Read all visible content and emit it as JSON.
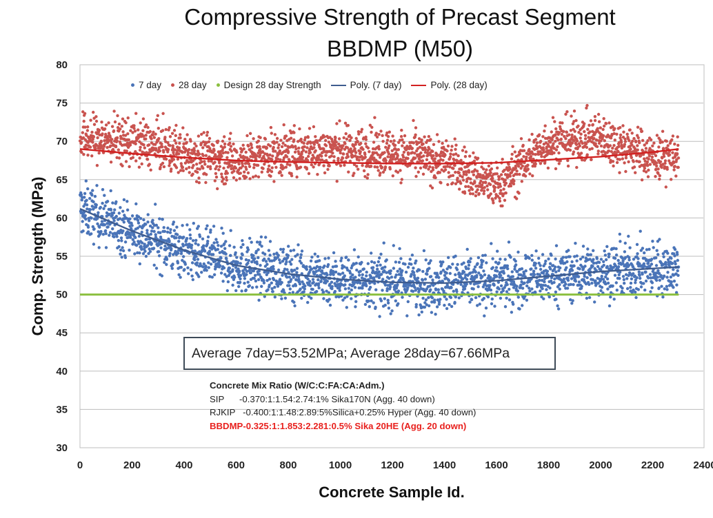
{
  "chart_data": {
    "type": "scatter",
    "title": "Compressive Strength of Precast Segment",
    "subtitle": "BBDMP (M50)",
    "xlabel": "Concrete Sample Id.",
    "ylabel": "Comp. Strength (MPa)",
    "xlim": [
      0,
      2400
    ],
    "ylim": [
      30,
      80
    ],
    "x_ticks": [
      "0",
      "200",
      "400",
      "600",
      "800",
      "1000",
      "1200",
      "1400",
      "1600",
      "1800",
      "2000",
      "2200",
      "2400"
    ],
    "y_ticks": [
      "30",
      "35",
      "40",
      "45",
      "50",
      "55",
      "60",
      "65",
      "70",
      "75",
      "80"
    ],
    "grid": "horizontal",
    "legend": {
      "placement": "top",
      "entries": [
        "7 day",
        "28 day",
        "Design 28 day Strength",
        "Poly. (7 day)",
        "Poly. (28 day)"
      ]
    },
    "n_points_per_series": 2300,
    "series": [
      {
        "name": "7 day",
        "kind": "scatter",
        "color": "#4a74b8",
        "trend_profile": [
          [
            0,
            61.2
          ],
          [
            200,
            58.3
          ],
          [
            400,
            55.8
          ],
          [
            600,
            53.8
          ],
          [
            800,
            52.7
          ],
          [
            1000,
            52.0
          ],
          [
            1200,
            51.6
          ],
          [
            1400,
            51.5
          ],
          [
            1600,
            51.8
          ],
          [
            1800,
            52.4
          ],
          [
            2000,
            53.0
          ],
          [
            2200,
            53.4
          ],
          [
            2300,
            53.6
          ]
        ],
        "spread": 3.2
      },
      {
        "name": "28 day",
        "kind": "scatter",
        "color": "#c9534f",
        "trend_profile": [
          [
            0,
            70.5
          ],
          [
            200,
            70.0
          ],
          [
            400,
            68.5
          ],
          [
            600,
            67.5
          ],
          [
            800,
            68.5
          ],
          [
            1000,
            69.0
          ],
          [
            1200,
            68.5
          ],
          [
            1400,
            67.5
          ],
          [
            1600,
            64.0
          ],
          [
            1800,
            70.0
          ],
          [
            2000,
            70.5
          ],
          [
            2200,
            68.0
          ],
          [
            2300,
            68.0
          ]
        ],
        "spread": 2.8
      },
      {
        "name": "Design 28 day Strength",
        "kind": "line",
        "color": "#8bbf3f",
        "x": [
          0,
          2300
        ],
        "y": [
          50,
          50
        ]
      },
      {
        "name": "Poly. (7 day)",
        "kind": "trendline",
        "color": "#3e5c8f",
        "x": [
          0,
          200,
          400,
          600,
          800,
          1000,
          1200,
          1400,
          1600,
          1800,
          2000,
          2200,
          2300
        ],
        "y": [
          61.2,
          58.3,
          55.8,
          53.8,
          52.7,
          52.0,
          51.6,
          51.5,
          51.8,
          52.4,
          53.0,
          53.4,
          53.6
        ]
      },
      {
        "name": "Poly. (28 day)",
        "kind": "trendline",
        "color": "#d22020",
        "x": [
          0,
          200,
          400,
          600,
          800,
          1000,
          1200,
          1400,
          1600,
          1800,
          2000,
          2200,
          2300
        ],
        "y": [
          69.0,
          68.4,
          67.9,
          67.5,
          67.3,
          67.2,
          67.1,
          67.1,
          67.2,
          67.6,
          68.0,
          68.6,
          69.0
        ]
      }
    ],
    "annotations": {
      "average": "Average 7day=53.52MPa; Average 28day=67.66MPa",
      "mix_title": "Concrete Mix Ratio (W/C:C:FA:CA:Adm.)",
      "mix_lines": [
        "SIP      -0.370:1:1.54:2.74:1% Sika170N (Agg. 40 down)",
        "RJKIP   -0.400:1:1.48:2.89:5%Silica+0.25% Hyper (Agg. 40 down)"
      ],
      "mix_highlight": "BBDMP-0.325:1:1.853:2.281:0.5% Sika 20HE (Agg. 20 down)"
    }
  }
}
